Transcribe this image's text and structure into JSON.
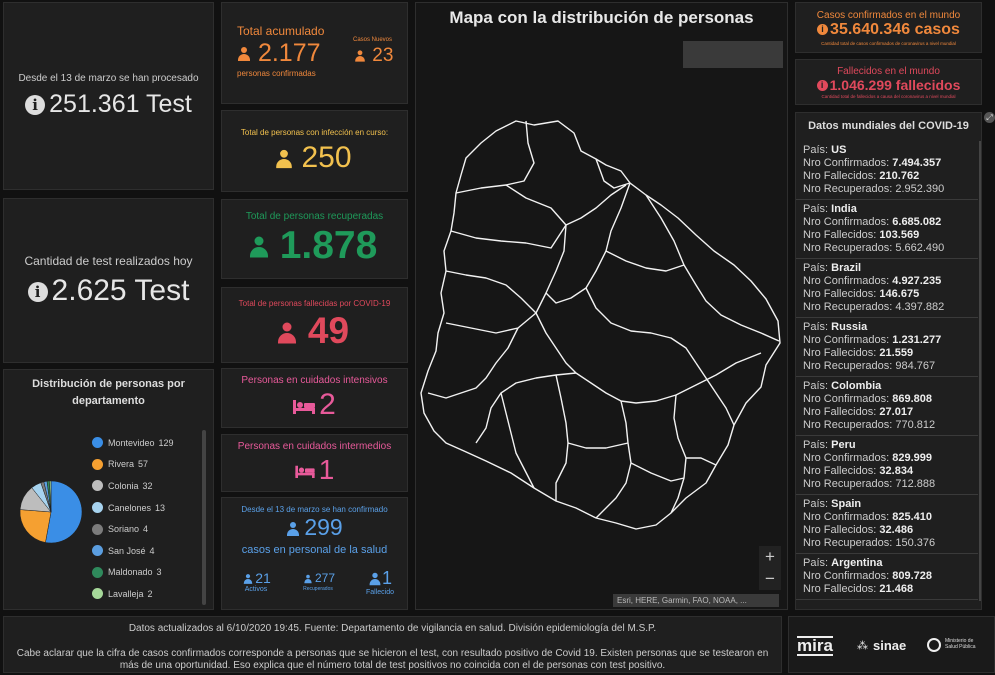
{
  "tests": {
    "processed_label": "Desde el 13 de marzo se han procesado",
    "processed_value": "251.361 Test",
    "today_label": "Cantidad de test realizados hoy",
    "today_value": "2.625 Test"
  },
  "cards": {
    "total": {
      "title": "Total acumulado",
      "value": "2.177",
      "subtitle": "personas confirmadas",
      "new_label": "Casos Nuevos",
      "new_value": "23",
      "color": "#f0883c"
    },
    "active": {
      "title": "Total de personas con infección en curso:",
      "value": "250",
      "color": "#f2c14e"
    },
    "recovered": {
      "title": "Total de personas recuperadas",
      "value": "1.878",
      "color": "#1f9a5a"
    },
    "deaths": {
      "title": "Total de personas fallecidas por COVID-19",
      "value": "49",
      "color": "#e0495c"
    },
    "icu": {
      "title": "Personas en cuidados intensivos",
      "value": "2",
      "color": "#e85a9a"
    },
    "intermediate": {
      "title": "Personas en cuidados intermedios",
      "value": "1",
      "color": "#e85a9a"
    },
    "health": {
      "title": "Desde el 13 de marzo se han confirmado",
      "value": "299",
      "subtitle": "casos en personal de la salud",
      "color": "#5aa0e8",
      "stats": [
        {
          "value": "21",
          "label": "Activos"
        },
        {
          "value": "277",
          "label": "Recuperados"
        },
        {
          "value": "1",
          "label": "Fallecido"
        }
      ]
    }
  },
  "departments": {
    "title": "Distribución de personas por departamento",
    "items": [
      {
        "label": "Montevideo",
        "value": "129",
        "color": "#3a8ee6"
      },
      {
        "label": "Rivera",
        "value": "57",
        "color": "#f5a031"
      },
      {
        "label": "Colonia",
        "value": "32",
        "color": "#bdbdbd"
      },
      {
        "label": "Canelones",
        "value": "13",
        "color": "#a7d3ef"
      },
      {
        "label": "Soriano",
        "value": "4",
        "color": "#7c7c7c"
      },
      {
        "label": "San José",
        "value": "4",
        "color": "#5b9ee0"
      },
      {
        "label": "Maldonado",
        "value": "3",
        "color": "#2f8a5c"
      },
      {
        "label": "Lavalleja",
        "value": "2",
        "color": "#a6d89a"
      }
    ]
  },
  "map": {
    "title": "Mapa con la distribución de personas",
    "zoom_in": "+",
    "zoom_out": "−",
    "attribution": "Esri, HERE, Garmin, FAO, NOAA, ..."
  },
  "world": {
    "confirmed_title": "Casos confirmados en el mundo",
    "confirmed_value": "35.640.346 casos",
    "confirmed_note": "Cantidad total de casos confirmados de coronavirus a nivel mundial",
    "deaths_title": "Fallecidos en el mundo",
    "deaths_value": "1.046.299 fallecidos",
    "deaths_note": "Cantidad total de fallecidos a causa del coronavirus a nivel mundial",
    "list_title": "Datos mundiales del COVID-19",
    "labels": {
      "country": "País:",
      "confirmed": "Nro Confirmados:",
      "deaths": "Nro Fallecidos:",
      "recovered": "Nro Recuperados:"
    },
    "countries": [
      {
        "name": "US",
        "confirmed": "7.494.357",
        "deaths": "210.762",
        "recovered": "2.952.390"
      },
      {
        "name": "India",
        "confirmed": "6.685.082",
        "deaths": "103.569",
        "recovered": "5.662.490"
      },
      {
        "name": "Brazil",
        "confirmed": "4.927.235",
        "deaths": "146.675",
        "recovered": "4.397.882"
      },
      {
        "name": "Russia",
        "confirmed": "1.231.277",
        "deaths": "21.559",
        "recovered": "984.767"
      },
      {
        "name": "Colombia",
        "confirmed": "869.808",
        "deaths": "27.017",
        "recovered": "770.812"
      },
      {
        "name": "Peru",
        "confirmed": "829.999",
        "deaths": "32.834",
        "recovered": "712.888"
      },
      {
        "name": "Spain",
        "confirmed": "825.410",
        "deaths": "32.486",
        "recovered": "150.376"
      },
      {
        "name": "Argentina",
        "confirmed": "809.728",
        "deaths": "21.468",
        "recovered": ""
      }
    ]
  },
  "footer": {
    "updated": "Datos actualizados al 6/10/2020 19:45. Fuente: Departamento de vigilancia en salud. División epidemiología del M.S.P.",
    "note": "Cabe aclarar que la cifra de casos confirmados corresponde a personas que se hicieron el test, con resultado positivo de Covid 19. Existen personas que se testearon en más de una oportunidad. Eso explica que el número total de test positivos no coincida con el de personas con test positivo.",
    "logos": [
      "mira",
      "sinae",
      "Ministerio de Salud Pública"
    ]
  }
}
